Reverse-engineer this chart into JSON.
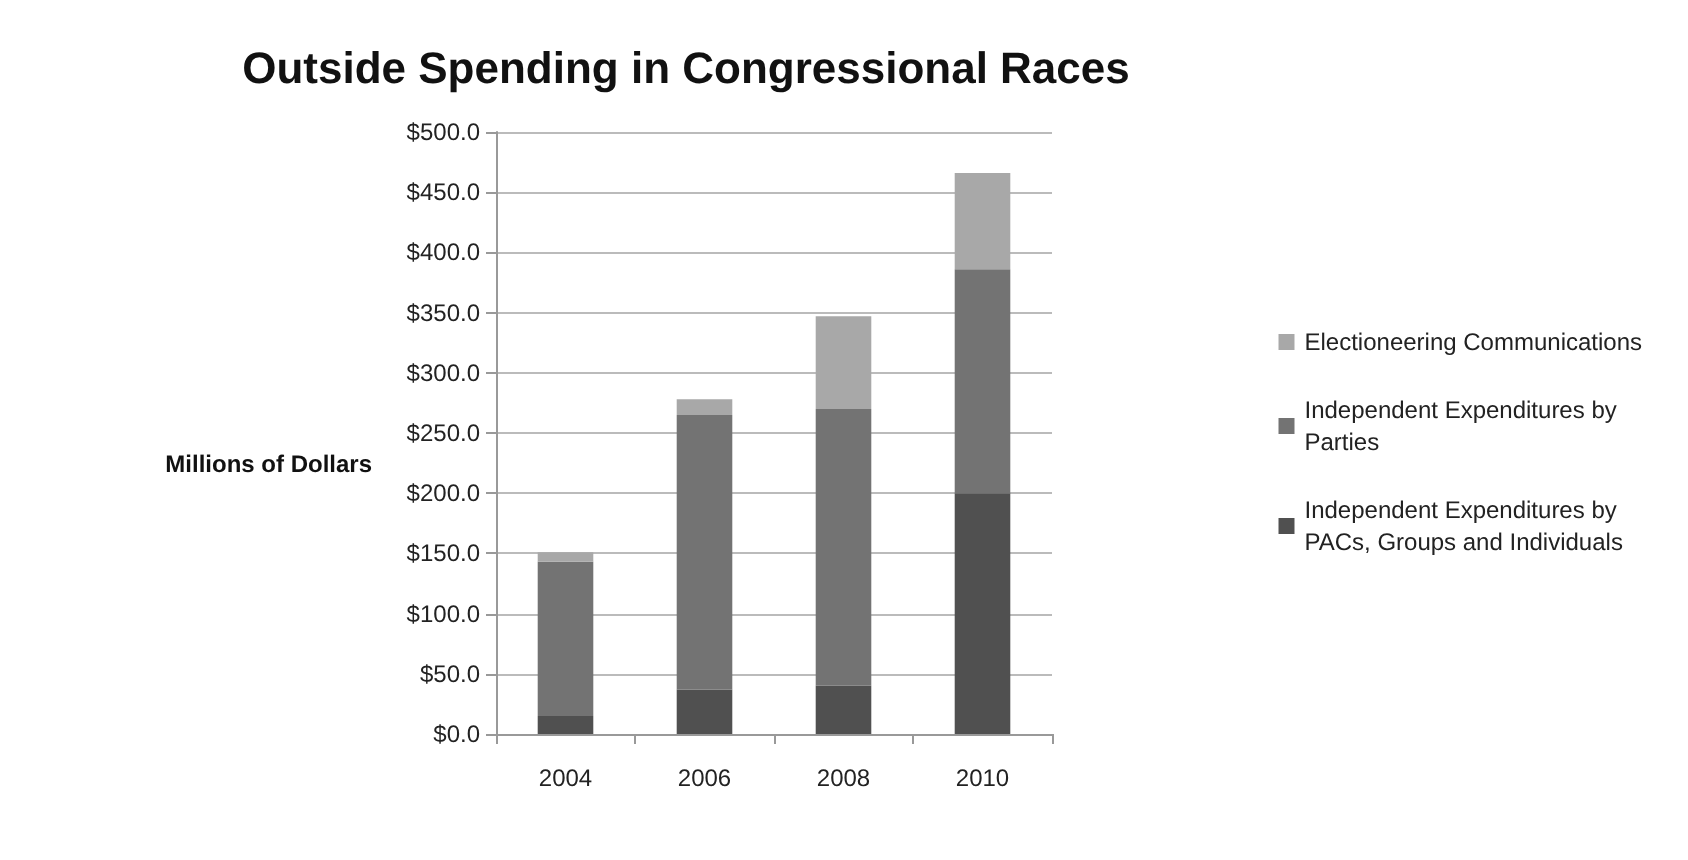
{
  "chart_data": {
    "type": "bar",
    "title": "Outside Spending in Congressional Races",
    "ylabel": "Millions of Dollars",
    "categories": [
      "2004",
      "2006",
      "2008",
      "2010"
    ],
    "stacked": true,
    "series": [
      {
        "name": "Independent Expenditures by\nPACs, Groups and Individuals",
        "color": "#505050",
        "values": [
          15,
          37,
          40,
          200
        ]
      },
      {
        "name": "Independent Expenditures by\nParties",
        "color": "#737373",
        "values": [
          128,
          228,
          230,
          186
        ]
      },
      {
        "name": "Electioneering Communications",
        "color": "#a8a8a8",
        "values": [
          8,
          13,
          77,
          80
        ]
      }
    ],
    "ylim": [
      0,
      500
    ],
    "yticks": [
      {
        "value": 0,
        "label": "$0.0"
      },
      {
        "value": 50,
        "label": "$50.0"
      },
      {
        "value": 100,
        "label": "$100.0"
      },
      {
        "value": 150,
        "label": "$150.0"
      },
      {
        "value": 200,
        "label": "$200.0"
      },
      {
        "value": 250,
        "label": "$250.0"
      },
      {
        "value": 300,
        "label": "$300.0"
      },
      {
        "value": 350,
        "label": "$350.0"
      },
      {
        "value": 400,
        "label": "$400.0"
      },
      {
        "value": 450,
        "label": "$450.0"
      },
      {
        "value": 500,
        "label": "$500.0"
      }
    ],
    "grid": "y",
    "legend": "right"
  }
}
